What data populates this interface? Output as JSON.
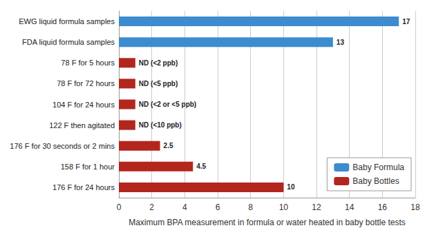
{
  "chart_data": {
    "type": "bar",
    "orientation": "horizontal",
    "x_label": "Maximum BPA measurement in formula or water heated in baby bottle tests",
    "categories": [
      "EWG liquid formula samples",
      "FDA liquid formula samples",
      "78 F for 5 hours",
      "78 F for 72 hours",
      "104 F for 24 hours",
      "122 F then agitated",
      "176 F for 30 seconds or 2 mins",
      "158 F for 1 hour",
      "176 F for 24 hours"
    ],
    "series": [
      {
        "name": "Baby Formula",
        "color": "#3d8ccf",
        "values": [
          17,
          13,
          null,
          null,
          null,
          null,
          null,
          null,
          null
        ]
      },
      {
        "name": "Baby Bottles",
        "color": "#b3261e",
        "values": [
          null,
          null,
          1,
          1,
          1,
          1,
          2.5,
          4.5,
          10
        ],
        "value_labels": [
          null,
          null,
          "ND (<2 ppb)",
          "ND (<5 ppb)",
          "ND (<2 or <5 ppb)",
          "ND (<10 ppb)",
          "2.5",
          "4.5",
          "10"
        ]
      }
    ],
    "xlim": [
      0,
      18
    ],
    "xticks": [
      0,
      2,
      4,
      6,
      8,
      10,
      12,
      14,
      16,
      18
    ],
    "grid": true,
    "legend": "bottom-right",
    "data_labels": true
  }
}
